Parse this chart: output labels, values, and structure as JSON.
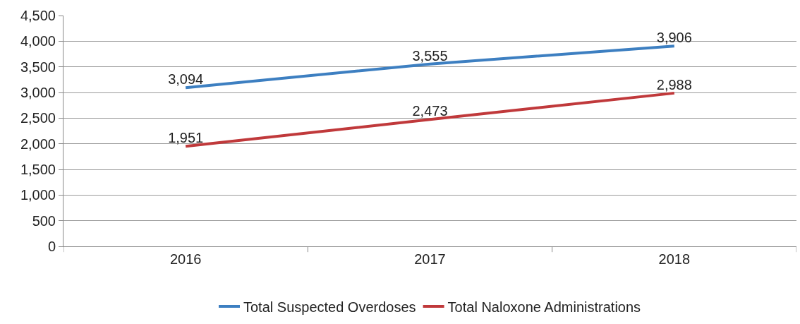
{
  "chart_data": {
    "type": "line",
    "categories": [
      "2016",
      "2017",
      "2018"
    ],
    "series": [
      {
        "name": "Total Suspected Overdoses",
        "color": "#3d7fc1",
        "values": [
          3094,
          3555,
          3906
        ],
        "value_labels": [
          "3,094",
          "3,555",
          "3,906"
        ]
      },
      {
        "name": "Total Naloxone Administrations",
        "color": "#c0393b",
        "values": [
          1951,
          2473,
          2988
        ],
        "value_labels": [
          "1,951",
          "2,473",
          "2,988"
        ]
      }
    ],
    "ylim": [
      0,
      4500
    ],
    "yticks": [
      0,
      500,
      {
        "value": 1000,
        "label": "1,000"
      },
      {
        "value": 1500,
        "label": "1,500"
      },
      {
        "value": 2000,
        "label": "2,000"
      },
      {
        "value": 2500,
        "label": "2,500"
      },
      {
        "value": 3000,
        "label": "3,000"
      },
      {
        "value": 3500,
        "label": "3,500"
      },
      {
        "value": 4000,
        "label": "4,000"
      },
      {
        "value": 4500,
        "label": "4,500"
      }
    ],
    "grid": "y",
    "legend": "bottom",
    "marker": "none",
    "line_style": "solid"
  }
}
